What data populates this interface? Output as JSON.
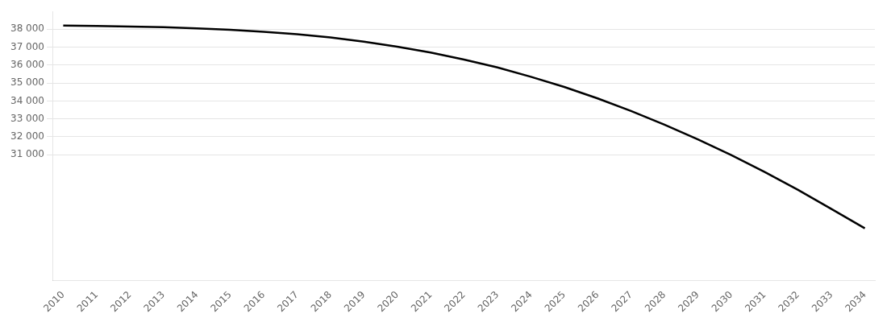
{
  "chart_data": {
    "type": "line",
    "x": [
      2010,
      2011,
      2012,
      2013,
      2014,
      2015,
      2016,
      2017,
      2018,
      2019,
      2020,
      2021,
      2022,
      2023,
      2024,
      2025,
      2026,
      2027,
      2028,
      2029,
      2030,
      2031,
      2032,
      2033,
      2034
    ],
    "values": [
      38200,
      38180,
      38150,
      38110,
      38050,
      37970,
      37860,
      37720,
      37540,
      37310,
      37030,
      36700,
      36310,
      35870,
      35350,
      34780,
      34140,
      33440,
      32680,
      31860,
      30980,
      30040,
      29040,
      27980,
      26900
    ],
    "color": "#000000",
    "marker": "none",
    "xlim": [
      2009.7,
      2034.3
    ],
    "xticks": [
      2010,
      2011,
      2012,
      2013,
      2014,
      2015,
      2016,
      2017,
      2018,
      2019,
      2020,
      2021,
      2022,
      2023,
      2024,
      2025,
      2026,
      2027,
      2028,
      2029,
      2030,
      2031,
      2032,
      2033,
      2034
    ],
    "ylim": [
      24000,
      39000
    ],
    "yticks": [
      {
        "value": 38000,
        "label": "38 000"
      },
      {
        "value": 37000,
        "label": "37 000"
      },
      {
        "value": 36000,
        "label": "36 000"
      },
      {
        "value": 35000,
        "label": "35 000"
      },
      {
        "value": 34000,
        "label": "34 000"
      },
      {
        "value": 33000,
        "label": "33 000"
      },
      {
        "value": 32000,
        "label": "32 000"
      },
      {
        "value": 31000,
        "label": "31 000"
      }
    ],
    "grid": "y"
  }
}
